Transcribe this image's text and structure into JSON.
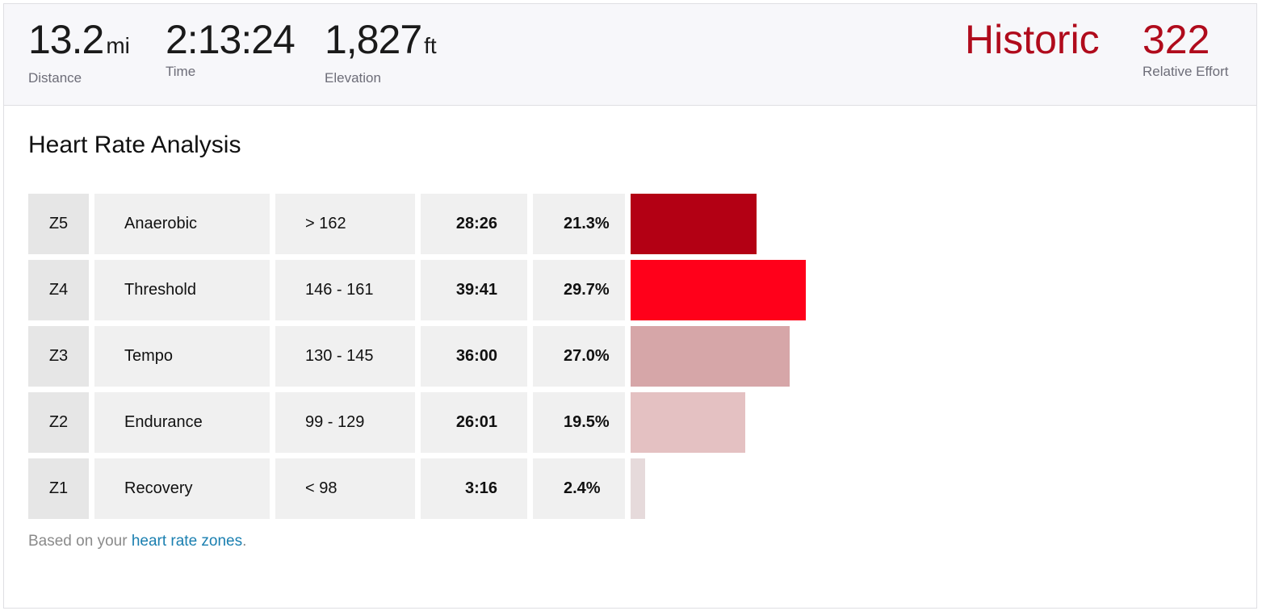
{
  "summary": {
    "distance": {
      "value": "13.2",
      "unit": "mi",
      "label": "Distance"
    },
    "time": {
      "value": "2:13:24",
      "label": "Time"
    },
    "elevation": {
      "value": "1,827",
      "unit": "ft",
      "label": "Elevation"
    },
    "effort_level": "Historic",
    "relative_effort": {
      "value": "322",
      "label": "Relative Effort"
    }
  },
  "analysis": {
    "title": "Heart Rate Analysis",
    "bar_max_percent": 29.7,
    "zones": [
      {
        "zone": "Z5",
        "name": "Anaerobic",
        "range": "> 162",
        "time": "28:26",
        "percent_label": "21.3%",
        "percent": 21.3,
        "color": "#b30014"
      },
      {
        "zone": "Z4",
        "name": "Threshold",
        "range": "146 - 161",
        "time": "39:41",
        "percent_label": "29.7%",
        "percent": 29.7,
        "color": "#ff001a"
      },
      {
        "zone": "Z3",
        "name": "Tempo",
        "range": "130 - 145",
        "time": "36:00",
        "percent_label": "27.0%",
        "percent": 27.0,
        "color": "#d6a6a8"
      },
      {
        "zone": "Z2",
        "name": "Endurance",
        "range": "99 - 129",
        "time": "26:01",
        "percent_label": "19.5%",
        "percent": 19.5,
        "color": "#e4c1c2"
      },
      {
        "zone": "Z1",
        "name": "Recovery",
        "range": "< 98",
        "time": "3:16",
        "percent_label": "2.4%",
        "percent": 2.4,
        "color": "#e6dadb"
      }
    ],
    "footnote": {
      "prefix": "Based on your ",
      "link_text": "heart rate zones",
      "suffix": "."
    }
  }
}
